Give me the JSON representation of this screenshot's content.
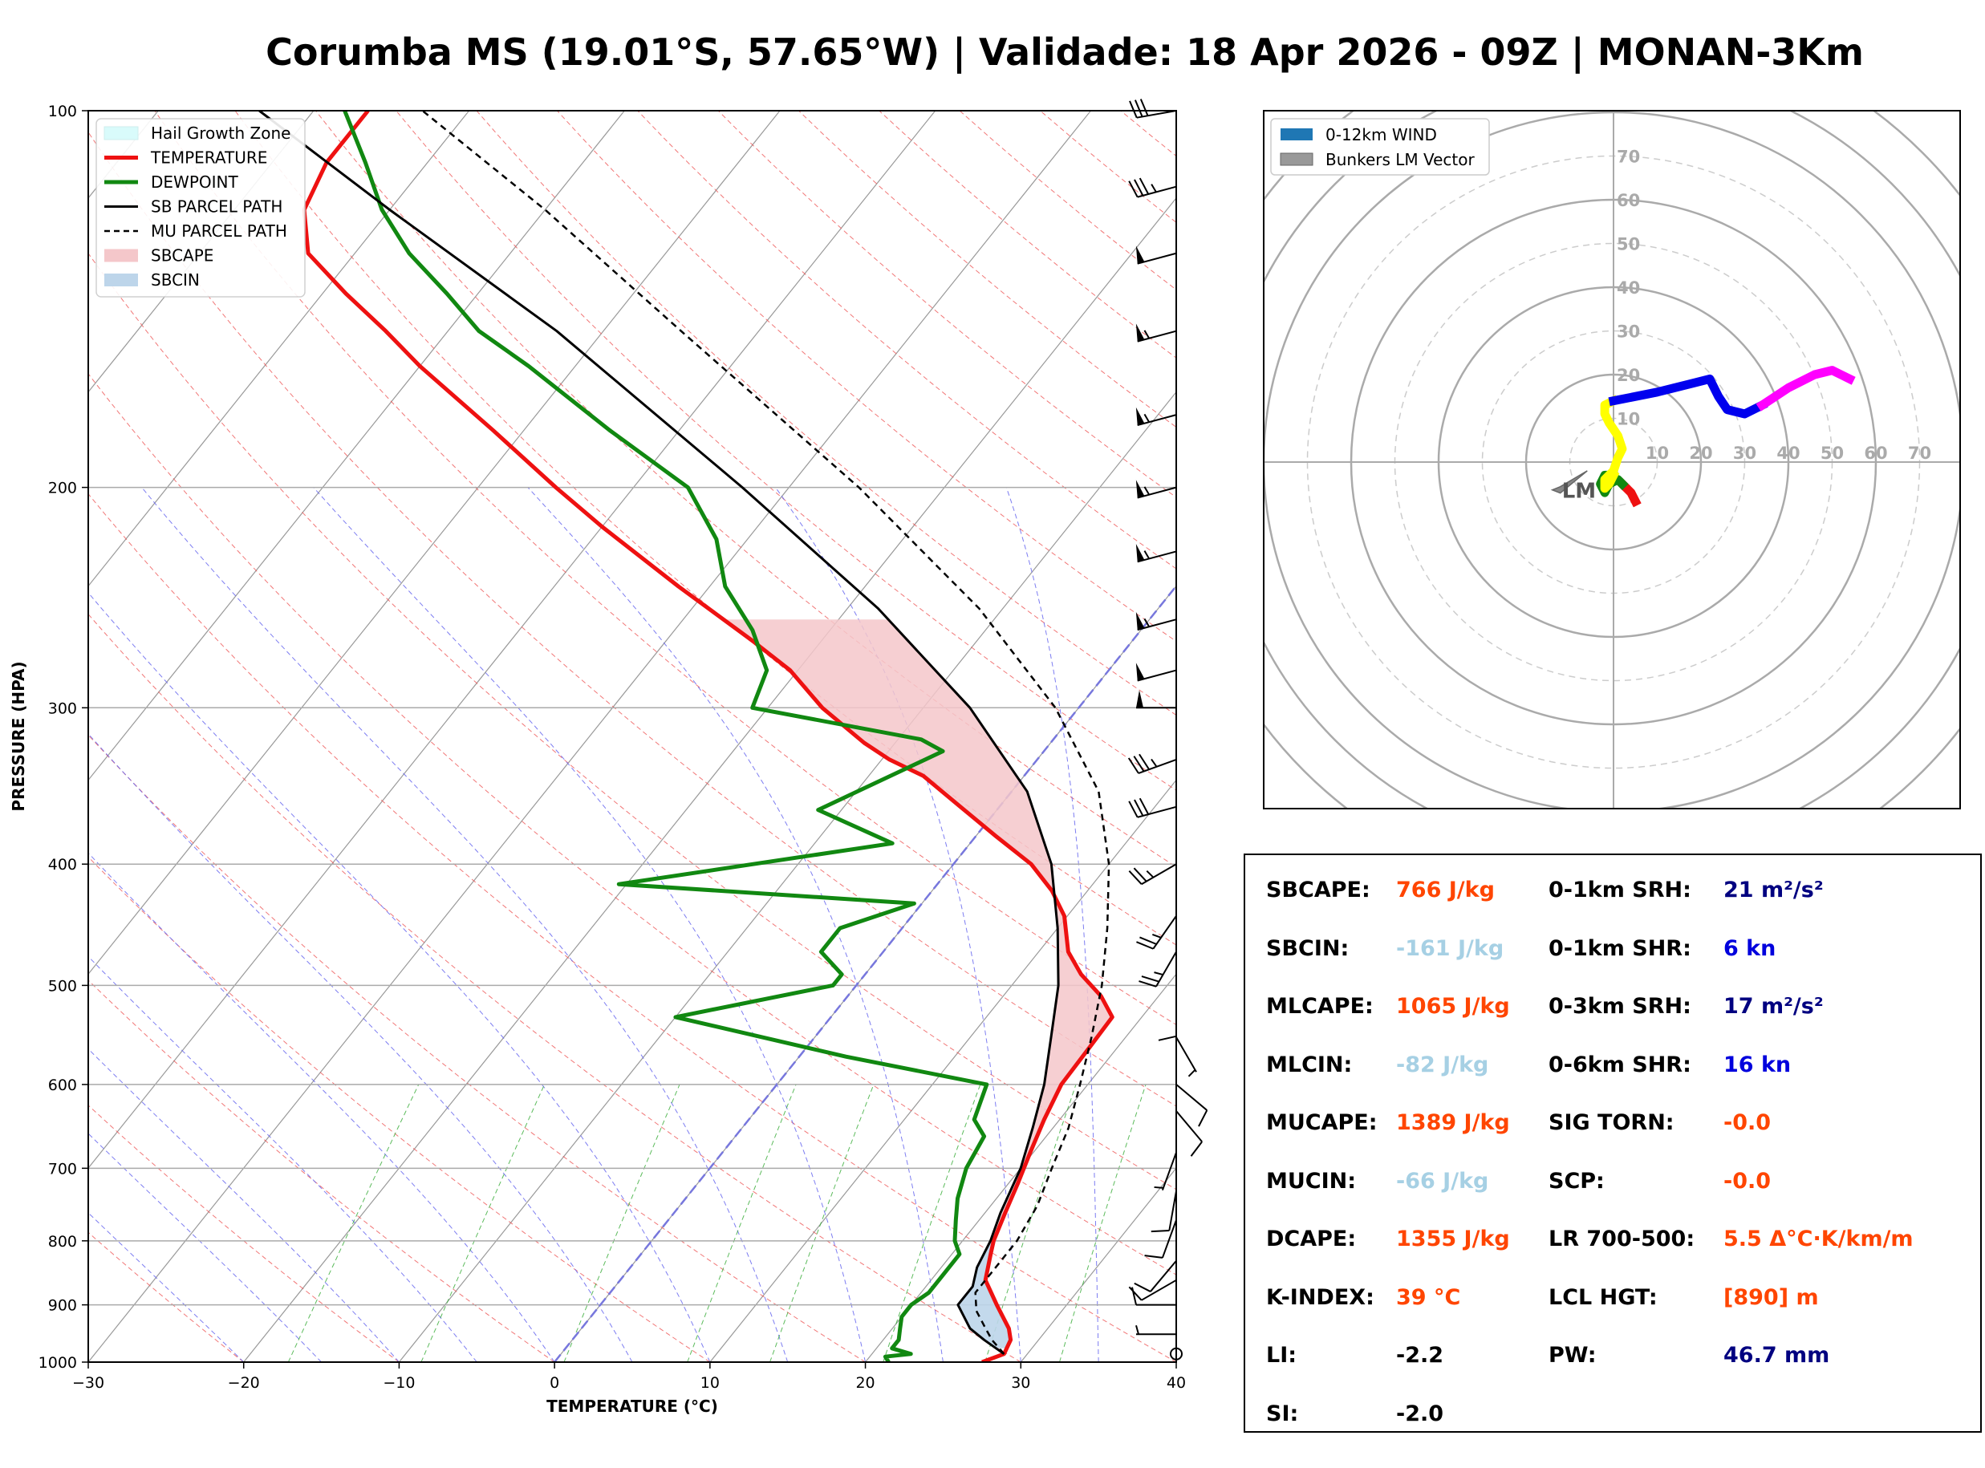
{
  "title": "Corumba MS (19.01°S, 57.65°W) | Validade: 18 Apr 2026 - 09Z | MONAN-3Km",
  "colors": {
    "temperature": "#ee1111",
    "dewpoint": "#118811",
    "parcel": "#000000",
    "sbcape": "#f4c7ca",
    "sbcin": "#bdd5ea",
    "hail": "#d9fbfb",
    "value_orange": "#ff4500",
    "value_lightblue": "#a6d0e4",
    "value_navy": "#000080",
    "value_blue": "#0000dd",
    "value_black": "#000000"
  },
  "chart_data": [
    {
      "type": "line",
      "name": "skew-t",
      "xlabel": "TEMPERATURE (°C)",
      "ylabel": "PRESSURE (HPA)",
      "xlim": [
        -30,
        40
      ],
      "ylim": [
        1000,
        100
      ],
      "x_ticks": [
        "−30",
        "−20",
        "−10",
        "0",
        "10",
        "20",
        "30",
        "40"
      ],
      "x_tick_values": [
        -30,
        -20,
        -10,
        0,
        10,
        20,
        30,
        40
      ],
      "y_ticks": [
        "1000",
        "900",
        "800",
        "700",
        "600",
        "500",
        "400",
        "300",
        "200",
        "100"
      ],
      "y_tick_values": [
        1000,
        900,
        800,
        700,
        600,
        500,
        400,
        300,
        200,
        100
      ],
      "legend": [
        {
          "label": "Hail Growth Zone",
          "style": "fill-hail"
        },
        {
          "label": "TEMPERATURE",
          "style": "line-temp"
        },
        {
          "label": "DEWPOINT",
          "style": "line-dew"
        },
        {
          "label": "SB PARCEL PATH",
          "style": "line-sb"
        },
        {
          "label": "MU PARCEL PATH",
          "style": "line-mu"
        },
        {
          "label": "SBCAPE",
          "style": "fill-cape"
        },
        {
          "label": "SBCIN",
          "style": "fill-cin"
        }
      ],
      "series": [
        {
          "name": "TEMPERATURE",
          "points": [
            [
              1000,
              27.5
            ],
            [
              985,
              28.5
            ],
            [
              960,
              28.2
            ],
            [
              940,
              27.5
            ],
            [
              900,
              25.5
            ],
            [
              860,
              23.5
            ],
            [
              820,
              22.5
            ],
            [
              800,
              22.0
            ],
            [
              760,
              21.3
            ],
            [
              720,
              20.6
            ],
            [
              680,
              19.8
            ],
            [
              640,
              19.0
            ],
            [
              600,
              18.3
            ],
            [
              560,
              18.2
            ],
            [
              530,
              18.1
            ],
            [
              510,
              16.3
            ],
            [
              490,
              13.9
            ],
            [
              470,
              11.9
            ],
            [
              440,
              9.8
            ],
            [
              420,
              7.7
            ],
            [
              400,
              5.0
            ],
            [
              380,
              1.3
            ],
            [
              360,
              -2.5
            ],
            [
              340,
              -6.5
            ],
            [
              330,
              -9.5
            ],
            [
              320,
              -12.0
            ],
            [
              300,
              -16.5
            ],
            [
              280,
              -20.5
            ],
            [
              265,
              -24.5
            ],
            [
              240,
              -32.0
            ],
            [
              215,
              -40.0
            ],
            [
              200,
              -45.0
            ],
            [
              180,
              -52.0
            ],
            [
              160,
              -60.0
            ],
            [
              150,
              -64.0
            ],
            [
              140,
              -68.5
            ],
            [
              130,
              -73.0
            ],
            [
              120,
              -75.5
            ],
            [
              110,
              -76.5
            ],
            [
              100,
              -76.5
            ]
          ]
        },
        {
          "name": "DEWPOINT",
          "points": [
            [
              1000,
              21.5
            ],
            [
              990,
              21.0
            ],
            [
              985,
              22.5
            ],
            [
              975,
              21.0
            ],
            [
              960,
              21.0
            ],
            [
              940,
              20.5
            ],
            [
              920,
              20.0
            ],
            [
              900,
              20.0
            ],
            [
              880,
              20.5
            ],
            [
              850,
              20.5
            ],
            [
              820,
              20.5
            ],
            [
              800,
              19.5
            ],
            [
              770,
              18.5
            ],
            [
              740,
              17.5
            ],
            [
              700,
              16.5
            ],
            [
              660,
              16.0
            ],
            [
              640,
              14.5
            ],
            [
              600,
              13.5
            ],
            [
              570,
              3.0
            ],
            [
              530,
              -10.0
            ],
            [
              500,
              -1.5
            ],
            [
              490,
              -1.5
            ],
            [
              470,
              -4.0
            ],
            [
              450,
              -4.0
            ],
            [
              430,
              -0.5
            ],
            [
              415,
              -20.5
            ],
            [
              385,
              -5.0
            ],
            [
              362,
              -11.5
            ],
            [
              325,
              -6.5
            ],
            [
              318,
              -8.5
            ],
            [
              300,
              -21.0
            ],
            [
              280,
              -22.0
            ],
            [
              260,
              -25.0
            ],
            [
              240,
              -29.0
            ],
            [
              220,
              -32.0
            ],
            [
              200,
              -36.5
            ],
            [
              180,
              -44.5
            ],
            [
              160,
              -53.0
            ],
            [
              150,
              -58.0
            ],
            [
              140,
              -62.0
            ],
            [
              130,
              -66.5
            ],
            [
              120,
              -70.5
            ],
            [
              110,
              -74.0
            ],
            [
              100,
              -78.0
            ]
          ]
        },
        {
          "name": "SB PARCEL PATH",
          "points": [
            [
              985,
              28.5
            ],
            [
              960,
              26.5
            ],
            [
              940,
              25.0
            ],
            [
              900,
              23.0
            ],
            [
              870,
              23.0
            ],
            [
              840,
              22.3
            ],
            [
              800,
              21.8
            ],
            [
              760,
              21.0
            ],
            [
              700,
              20.0
            ],
            [
              650,
              18.7
            ],
            [
              600,
              17.2
            ],
            [
              550,
              15.2
            ],
            [
              500,
              13.0
            ],
            [
              450,
              10.0
            ],
            [
              400,
              6.3
            ],
            [
              350,
              1.0
            ],
            [
              300,
              -7.0
            ],
            [
              250,
              -18.0
            ],
            [
              200,
              -33.0
            ],
            [
              150,
              -53.0
            ],
            [
              120,
              -70.0
            ],
            [
              100,
              -83.5
            ]
          ]
        },
        {
          "name": "MU PARCEL PATH",
          "points": [
            [
              985,
              28.5
            ],
            [
              960,
              27.0
            ],
            [
              940,
              26.0
            ],
            [
              910,
              24.5
            ],
            [
              880,
              23.5
            ],
            [
              840,
              23.5
            ],
            [
              800,
              23.5
            ],
            [
              750,
              23.0
            ],
            [
              700,
              22.0
            ],
            [
              650,
              21.0
            ],
            [
              600,
              19.5
            ],
            [
              550,
              17.8
            ],
            [
              500,
              15.8
            ],
            [
              450,
              13.2
            ],
            [
              400,
              10.0
            ],
            [
              350,
              5.6
            ],
            [
              300,
              -1.5
            ],
            [
              250,
              -11.5
            ],
            [
              200,
              -25.5
            ],
            [
              150,
              -45.0
            ],
            [
              120,
              -60.0
            ],
            [
              100,
              -73.0
            ]
          ]
        }
      ],
      "hail_zone_hpa": [
        385,
        583
      ],
      "wind_barbs": [
        {
          "p": 100,
          "dir": 260,
          "spd": 30
        },
        {
          "p": 115,
          "dir": 255,
          "spd": 35
        },
        {
          "p": 130,
          "dir": 255,
          "spd": 50
        },
        {
          "p": 150,
          "dir": 255,
          "spd": 55
        },
        {
          "p": 175,
          "dir": 255,
          "spd": 55
        },
        {
          "p": 200,
          "dir": 255,
          "spd": 55
        },
        {
          "p": 225,
          "dir": 255,
          "spd": 55
        },
        {
          "p": 255,
          "dir": 255,
          "spd": 55
        },
        {
          "p": 280,
          "dir": 255,
          "spd": 50
        },
        {
          "p": 300,
          "dir": 270,
          "spd": 50
        },
        {
          "p": 330,
          "dir": 250,
          "spd": 35
        },
        {
          "p": 360,
          "dir": 255,
          "spd": 30
        },
        {
          "p": 400,
          "dir": 240,
          "spd": 25
        },
        {
          "p": 440,
          "dir": 215,
          "spd": 25
        },
        {
          "p": 470,
          "dir": 210,
          "spd": 25
        },
        {
          "p": 510,
          "dir": 180,
          "spd": 10
        },
        {
          "p": 550,
          "dir": 150,
          "spd": 5
        },
        {
          "p": 600,
          "dir": 130,
          "spd": 10
        },
        {
          "p": 630,
          "dir": 140,
          "spd": 10
        },
        {
          "p": 680,
          "dir": 200,
          "spd": 5
        },
        {
          "p": 730,
          "dir": 190,
          "spd": 10
        },
        {
          "p": 770,
          "dir": 200,
          "spd": 10
        },
        {
          "p": 830,
          "dir": 220,
          "spd": 10
        },
        {
          "p": 860,
          "dir": 240,
          "spd": 10
        },
        {
          "p": 900,
          "dir": 270,
          "spd": 10
        },
        {
          "p": 950,
          "dir": 270,
          "spd": 5
        }
      ],
      "calm_marker_hpa": 985
    },
    {
      "type": "scatter",
      "name": "hodograph",
      "rings": [
        10,
        20,
        30,
        40,
        50,
        60,
        70
      ],
      "ring_labels": [
        "10",
        "20",
        "30",
        "40",
        "50",
        "60",
        "70"
      ],
      "legend": [
        {
          "label": "0-12km WIND",
          "style": "patch-blue"
        },
        {
          "label": "Bunkers LM Vector",
          "style": "patch-gray"
        }
      ],
      "lm_label": "LM",
      "lm_vector": [
        -14,
        -6
      ],
      "segments": [
        {
          "color": "#ee1111",
          "points": [
            [
              5,
              -9
            ],
            [
              4,
              -7
            ],
            [
              2,
              -5
            ]
          ]
        },
        {
          "color": "#118811",
          "points": [
            [
              2,
              -5
            ],
            [
              1,
              -4
            ],
            [
              -1,
              -5
            ],
            [
              -2,
              -7
            ],
            [
              -3,
              -5
            ],
            [
              -2,
              -3
            ],
            [
              0,
              -3
            ]
          ]
        },
        {
          "color": "#ffff00",
          "points": [
            [
              0,
              -3
            ],
            [
              -1,
              -5
            ],
            [
              -2,
              -6
            ],
            [
              -2,
              -4
            ],
            [
              0,
              -2
            ],
            [
              1,
              1
            ],
            [
              2,
              3
            ],
            [
              1,
              6
            ],
            [
              -1,
              9
            ],
            [
              -2,
              11
            ],
            [
              -2,
              13
            ],
            [
              0,
              14
            ]
          ]
        },
        {
          "color": "#0000ee",
          "points": [
            [
              0,
              14
            ],
            [
              10,
              16
            ],
            [
              18,
              18
            ],
            [
              22,
              19
            ],
            [
              24,
              15
            ],
            [
              26,
              12
            ],
            [
              30,
              11
            ],
            [
              34,
              13
            ]
          ]
        },
        {
          "color": "#ff00ff",
          "points": [
            [
              34,
              13
            ],
            [
              40,
              17
            ],
            [
              46,
              20
            ],
            [
              50,
              21
            ],
            [
              52,
              20
            ],
            [
              54,
              19
            ]
          ]
        }
      ]
    }
  ],
  "params": {
    "left": [
      {
        "label": "SBCAPE:",
        "value": "766 J/kg",
        "color": "value_orange"
      },
      {
        "label": "SBCIN:",
        "value": "-161 J/kg",
        "color": "value_lightblue"
      },
      {
        "label": "MLCAPE:",
        "value": "1065 J/kg",
        "color": "value_orange"
      },
      {
        "label": "MLCIN:",
        "value": "-82 J/kg",
        "color": "value_lightblue"
      },
      {
        "label": "MUCAPE:",
        "value": "1389 J/kg",
        "color": "value_orange"
      },
      {
        "label": "MUCIN:",
        "value": "-66 J/kg",
        "color": "value_lightblue"
      },
      {
        "label": "DCAPE:",
        "value": "1355 J/kg",
        "color": "value_orange"
      },
      {
        "label": "K-INDEX:",
        "value": "39 °C",
        "color": "value_orange"
      },
      {
        "label": "LI:",
        "value": "-2.2",
        "color": "value_black"
      },
      {
        "label": "SI:",
        "value": "-2.0",
        "color": "value_black"
      }
    ],
    "right": [
      {
        "label": "0-1km SRH:",
        "value": "21 m²/s²",
        "color": "value_navy"
      },
      {
        "label": "0-1km SHR:",
        "value": "6 kn",
        "color": "value_blue"
      },
      {
        "label": "0-3km SRH:",
        "value": "17 m²/s²",
        "color": "value_navy"
      },
      {
        "label": "0-6km SHR:",
        "value": "16 kn",
        "color": "value_blue"
      },
      {
        "label": "SIG TORN:",
        "value": "-0.0",
        "color": "value_orange"
      },
      {
        "label": "SCP:",
        "value": "-0.0",
        "color": "value_orange"
      },
      {
        "label": "LR 700-500:",
        "value": "5.5 Δ°C·K/km/m",
        "color": "value_orange"
      },
      {
        "label": "LCL HGT:",
        "value": "[890] m",
        "color": "value_orange"
      },
      {
        "label": "PW:",
        "value": "46.7 mm",
        "color": "value_navy"
      }
    ]
  }
}
